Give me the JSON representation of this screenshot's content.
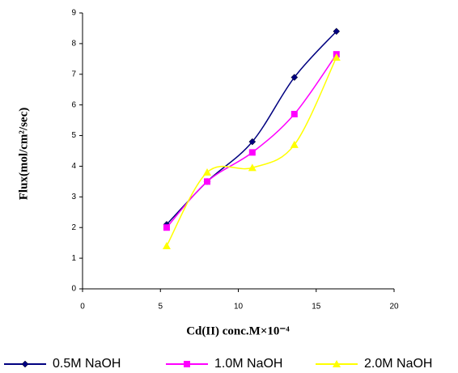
{
  "chart_data": {
    "type": "line",
    "x_label": "Cd(II) conc.M×10⁻⁴",
    "y_label": "Flux(mol/cm²/sec)",
    "x": [
      5.4,
      8,
      10.9,
      13.6,
      16.3
    ],
    "series": [
      {
        "name": "0.5M NaOH",
        "color": "#000080",
        "marker": "diamond",
        "values": [
          2.1,
          3.5,
          4.8,
          6.9,
          8.4
        ]
      },
      {
        "name": "1.0M NaOH",
        "color": "#ff00ff",
        "marker": "square",
        "values": [
          2.0,
          3.5,
          4.45,
          5.7,
          7.65
        ]
      },
      {
        "name": "2.0M NaOH",
        "color": "#ffff00",
        "marker": "triangle",
        "values": [
          1.4,
          3.8,
          3.95,
          4.7,
          7.55
        ]
      }
    ],
    "xlim": [
      0,
      20
    ],
    "xticks": [
      0,
      5,
      10,
      15,
      20
    ],
    "ylim": [
      0,
      9
    ],
    "yticks": [
      0,
      1,
      2,
      3,
      4,
      5,
      6,
      7,
      8,
      9
    ],
    "grid": false,
    "legend": "bottom"
  }
}
